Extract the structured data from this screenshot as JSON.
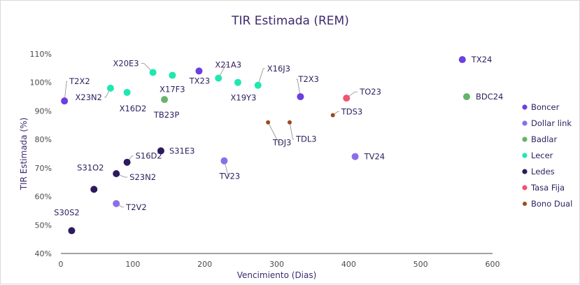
{
  "chart_data": {
    "type": "scatter",
    "title": "TIR Estimada (REM)",
    "xlabel": "Vencimiento (Dias)",
    "ylabel": "TIR Estimada (%)",
    "xlim": [
      0,
      600
    ],
    "ylim": [
      40,
      110
    ],
    "xticks": [
      0,
      100,
      200,
      300,
      400,
      500,
      600
    ],
    "yticks": [
      40,
      50,
      60,
      70,
      80,
      90,
      100,
      110
    ],
    "ytick_labels": [
      "40%",
      "50%",
      "60%",
      "70%",
      "80%",
      "90%",
      "100%",
      "110%"
    ],
    "legend_position": "right",
    "series": [
      {
        "name": "Boncer",
        "color": "#6b3fe0",
        "points": [
          {
            "label": "T2X2",
            "x": 5,
            "y": 93.5
          },
          {
            "label": "TX23",
            "x": 192,
            "y": 104
          },
          {
            "label": "T2X3",
            "x": 333,
            "y": 95
          },
          {
            "label": "TX24",
            "x": 558,
            "y": 108
          }
        ]
      },
      {
        "name": "Dollar link",
        "color": "#8a6fe8",
        "points": [
          {
            "label": "T2V2",
            "x": 77,
            "y": 57.5
          },
          {
            "label": "TV23",
            "x": 227,
            "y": 72.5
          },
          {
            "label": "TV24",
            "x": 409,
            "y": 74
          }
        ]
      },
      {
        "name": "Badlar",
        "color": "#66b36b",
        "points": [
          {
            "label": "TB23P",
            "x": 144,
            "y": 94
          },
          {
            "label": "BDC24",
            "x": 564,
            "y": 95
          }
        ]
      },
      {
        "name": "Lecer",
        "color": "#1ee8b0",
        "points": [
          {
            "label": "X23N2",
            "x": 69,
            "y": 98
          },
          {
            "label": "X16D2",
            "x": 92,
            "y": 96.5
          },
          {
            "label": "X20E3",
            "x": 128,
            "y": 103.5
          },
          {
            "label": "X17F3",
            "x": 155,
            "y": 102.5
          },
          {
            "label": "X21A3",
            "x": 219,
            "y": 101.5
          },
          {
            "label": "X19Y3",
            "x": 246,
            "y": 100
          },
          {
            "label": "X16J3",
            "x": 274,
            "y": 99
          }
        ]
      },
      {
        "name": "Ledes",
        "color": "#2d1a5c",
        "points": [
          {
            "label": "S30S2",
            "x": 15,
            "y": 48
          },
          {
            "label": "S31O2",
            "x": 46,
            "y": 62.5
          },
          {
            "label": "S23N2",
            "x": 77,
            "y": 68
          },
          {
            "label": "S16D2",
            "x": 92,
            "y": 72
          },
          {
            "label": "S31E3",
            "x": 139,
            "y": 76
          }
        ]
      },
      {
        "name": "Tasa Fija",
        "color": "#ee5570",
        "points": [
          {
            "label": "TO23",
            "x": 397,
            "y": 94.5
          }
        ]
      },
      {
        "name": "Bono Dual",
        "color": "#9a4a1e",
        "points": [
          {
            "label": "TDJ3",
            "x": 288,
            "y": 86
          },
          {
            "label": "TDL3",
            "x": 318,
            "y": 86
          },
          {
            "label": "TDS3",
            "x": 378,
            "y": 88.5
          }
        ]
      }
    ]
  }
}
